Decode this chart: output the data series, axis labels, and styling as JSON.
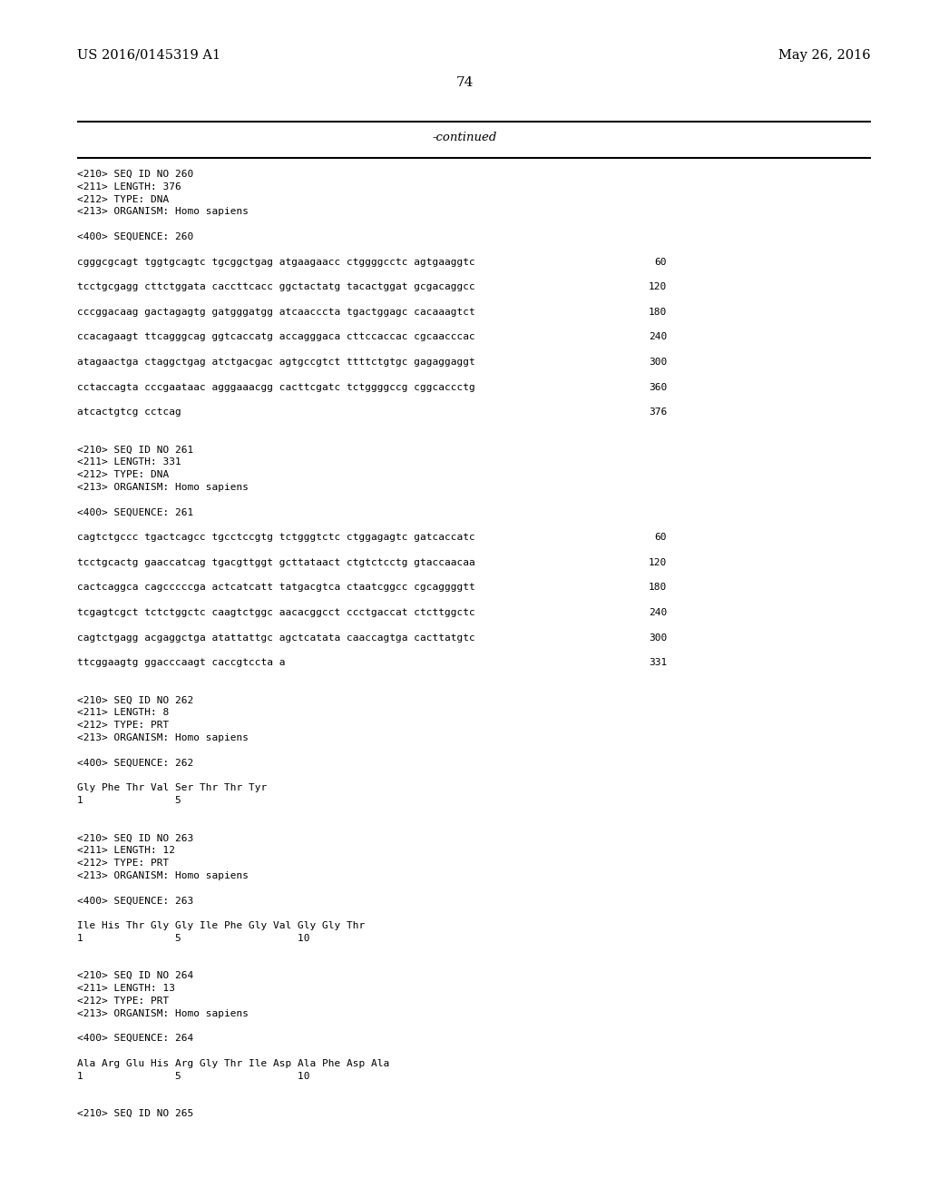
{
  "background_color": "#ffffff",
  "header_left": "US 2016/0145319 A1",
  "header_right": "May 26, 2016",
  "page_number": "74",
  "continued_label": "-continued",
  "font_size_header": 10.5,
  "font_size_page": 11,
  "font_size_continued": 9.5,
  "font_size_content": 8.0,
  "content": [
    {
      "text": "<210> SEQ ID NO 260",
      "col": "left"
    },
    {
      "text": "<211> LENGTH: 376",
      "col": "left"
    },
    {
      "text": "<212> TYPE: DNA",
      "col": "left"
    },
    {
      "text": "<213> ORGANISM: Homo sapiens",
      "col": "left"
    },
    {
      "text": "",
      "col": "left"
    },
    {
      "text": "<400> SEQUENCE: 260",
      "col": "left"
    },
    {
      "text": "",
      "col": "left"
    },
    {
      "text": "cgggcgcagt tggtgcagtc tgcggctgag atgaagaacc ctggggcctc agtgaaggtc",
      "col": "left",
      "num": "60"
    },
    {
      "text": "",
      "col": "left"
    },
    {
      "text": "tcctgcgagg cttctggata caccttcacc ggctactatg tacactggat gcgacaggcc",
      "col": "left",
      "num": "120"
    },
    {
      "text": "",
      "col": "left"
    },
    {
      "text": "cccggacaag gactagagtg gatgggatgg atcaacccta tgactggagc cacaaagtct",
      "col": "left",
      "num": "180"
    },
    {
      "text": "",
      "col": "left"
    },
    {
      "text": "ccacagaagt ttcagggcag ggtcaccatg accagggaca cttccaccac cgcaacccac",
      "col": "left",
      "num": "240"
    },
    {
      "text": "",
      "col": "left"
    },
    {
      "text": "atagaactga ctaggctgag atctgacgac agtgccgtct ttttctgtgc gagaggaggt",
      "col": "left",
      "num": "300"
    },
    {
      "text": "",
      "col": "left"
    },
    {
      "text": "cctaccagta cccgaataac agggaaacgg cacttcgatc tctggggccg cggcaccctg",
      "col": "left",
      "num": "360"
    },
    {
      "text": "",
      "col": "left"
    },
    {
      "text": "atcactgtcg cctcag",
      "col": "left",
      "num": "376"
    },
    {
      "text": "",
      "col": "left"
    },
    {
      "text": "",
      "col": "left"
    },
    {
      "text": "<210> SEQ ID NO 261",
      "col": "left"
    },
    {
      "text": "<211> LENGTH: 331",
      "col": "left"
    },
    {
      "text": "<212> TYPE: DNA",
      "col": "left"
    },
    {
      "text": "<213> ORGANISM: Homo sapiens",
      "col": "left"
    },
    {
      "text": "",
      "col": "left"
    },
    {
      "text": "<400> SEQUENCE: 261",
      "col": "left"
    },
    {
      "text": "",
      "col": "left"
    },
    {
      "text": "cagtctgccc tgactcagcc tgcctccgtg tctgggtctc ctggagagtc gatcaccatc",
      "col": "left",
      "num": "60"
    },
    {
      "text": "",
      "col": "left"
    },
    {
      "text": "tcctgcactg gaaccatcag tgacgttggt gcttataact ctgtctcctg gtaccaacaa",
      "col": "left",
      "num": "120"
    },
    {
      "text": "",
      "col": "left"
    },
    {
      "text": "cactcaggca cagcccccga actcatcatt tatgacgtca ctaatcggcc cgcaggggtt",
      "col": "left",
      "num": "180"
    },
    {
      "text": "",
      "col": "left"
    },
    {
      "text": "tcgagtcgct tctctggctc caagtctggc aacacggcct ccctgaccat ctcttggctc",
      "col": "left",
      "num": "240"
    },
    {
      "text": "",
      "col": "left"
    },
    {
      "text": "cagtctgagg acgaggctga atattattgc agctcatata caaccagtga cacttatgtc",
      "col": "left",
      "num": "300"
    },
    {
      "text": "",
      "col": "left"
    },
    {
      "text": "ttcggaagtg ggacccaagt caccgtccta a",
      "col": "left",
      "num": "331"
    },
    {
      "text": "",
      "col": "left"
    },
    {
      "text": "",
      "col": "left"
    },
    {
      "text": "<210> SEQ ID NO 262",
      "col": "left"
    },
    {
      "text": "<211> LENGTH: 8",
      "col": "left"
    },
    {
      "text": "<212> TYPE: PRT",
      "col": "left"
    },
    {
      "text": "<213> ORGANISM: Homo sapiens",
      "col": "left"
    },
    {
      "text": "",
      "col": "left"
    },
    {
      "text": "<400> SEQUENCE: 262",
      "col": "left"
    },
    {
      "text": "",
      "col": "left"
    },
    {
      "text": "Gly Phe Thr Val Ser Thr Thr Tyr",
      "col": "left"
    },
    {
      "text": "1               5",
      "col": "left"
    },
    {
      "text": "",
      "col": "left"
    },
    {
      "text": "",
      "col": "left"
    },
    {
      "text": "<210> SEQ ID NO 263",
      "col": "left"
    },
    {
      "text": "<211> LENGTH: 12",
      "col": "left"
    },
    {
      "text": "<212> TYPE: PRT",
      "col": "left"
    },
    {
      "text": "<213> ORGANISM: Homo sapiens",
      "col": "left"
    },
    {
      "text": "",
      "col": "left"
    },
    {
      "text": "<400> SEQUENCE: 263",
      "col": "left"
    },
    {
      "text": "",
      "col": "left"
    },
    {
      "text": "Ile His Thr Gly Gly Ile Phe Gly Val Gly Gly Thr",
      "col": "left"
    },
    {
      "text": "1               5                   10",
      "col": "left"
    },
    {
      "text": "",
      "col": "left"
    },
    {
      "text": "",
      "col": "left"
    },
    {
      "text": "<210> SEQ ID NO 264",
      "col": "left"
    },
    {
      "text": "<211> LENGTH: 13",
      "col": "left"
    },
    {
      "text": "<212> TYPE: PRT",
      "col": "left"
    },
    {
      "text": "<213> ORGANISM: Homo sapiens",
      "col": "left"
    },
    {
      "text": "",
      "col": "left"
    },
    {
      "text": "<400> SEQUENCE: 264",
      "col": "left"
    },
    {
      "text": "",
      "col": "left"
    },
    {
      "text": "Ala Arg Glu His Arg Gly Thr Ile Asp Ala Phe Asp Ala",
      "col": "left"
    },
    {
      "text": "1               5                   10",
      "col": "left"
    },
    {
      "text": "",
      "col": "left"
    },
    {
      "text": "",
      "col": "left"
    },
    {
      "text": "<210> SEQ ID NO 265",
      "col": "left"
    }
  ]
}
